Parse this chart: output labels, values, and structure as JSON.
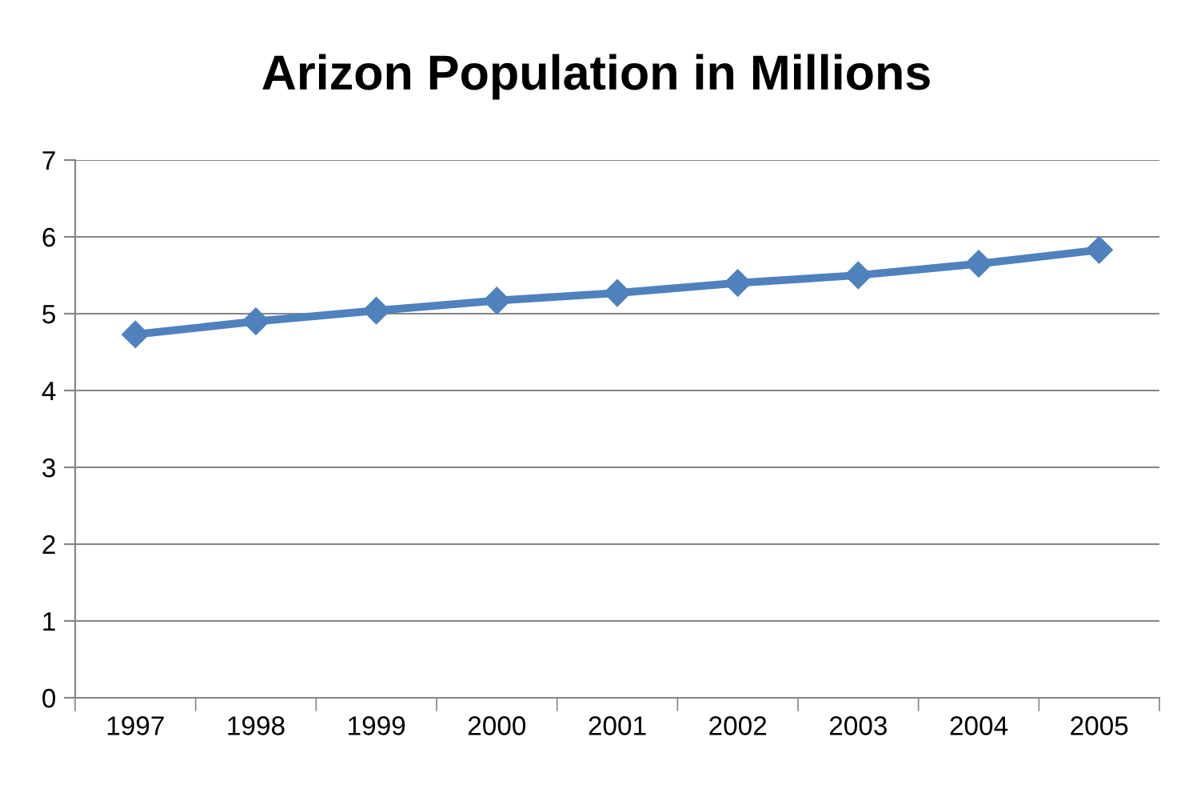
{
  "chart_data": {
    "type": "line",
    "title": "Arizon Population in Millions",
    "categories": [
      "1997",
      "1998",
      "1999",
      "2000",
      "2001",
      "2002",
      "2003",
      "2004",
      "2005"
    ],
    "series": [
      {
        "color": "#4f81bd",
        "values": [
          4.73,
          4.9,
          5.04,
          5.17,
          5.27,
          5.4,
          5.5,
          5.65,
          5.83
        ]
      }
    ],
    "ylim": [
      0,
      7
    ],
    "yticks": [
      0,
      1,
      2,
      3,
      4,
      5,
      6,
      7
    ],
    "grid": "y",
    "legend": false,
    "marker": "diamond",
    "line_style": "solid"
  }
}
